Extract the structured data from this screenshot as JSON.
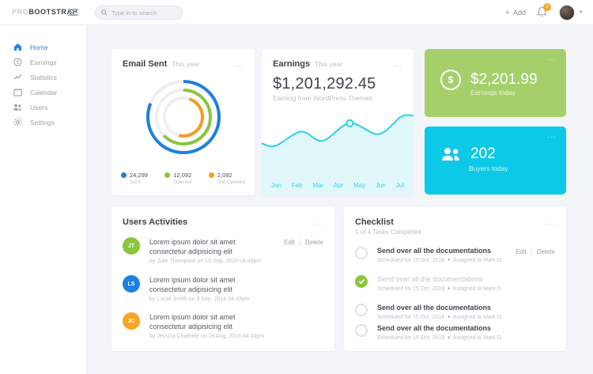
{
  "topbar": {
    "logo": {
      "pre": "PRO",
      "main": "BOOTSTRAP"
    },
    "search": {
      "placeholder": "Type in to search"
    },
    "add_label": "Add",
    "plus": "+",
    "notification_badge": "3",
    "caret": "▼"
  },
  "sidebar": {
    "items": [
      {
        "label": "Home",
        "active": true
      },
      {
        "label": "Earnings",
        "active": false
      },
      {
        "label": "Statistics",
        "active": false
      },
      {
        "label": "Calendar",
        "active": false
      },
      {
        "label": "Users",
        "active": false
      },
      {
        "label": "Settings",
        "active": false
      }
    ]
  },
  "email_sent": {
    "title": "Email Sent",
    "period": "This year",
    "menu": "...",
    "legend": [
      {
        "value": "24,299",
        "label": "Sent",
        "color": "#1d7fe0"
      },
      {
        "value": "12,092",
        "label": "Opened",
        "color": "#8bc53f"
      },
      {
        "value": "2,092",
        "label": "Not Opened",
        "color": "#f59d20"
      }
    ]
  },
  "earnings": {
    "title": "Earnings",
    "period": "This year",
    "menu": "...",
    "amount": "$1,201,292.45",
    "subtitle": "Earning from WordPress Themes",
    "months": [
      "Jan",
      "Feb",
      "Mar",
      "Apr",
      "May",
      "Jun",
      "Jul"
    ]
  },
  "earnings_today": {
    "menu": "...",
    "icon_symbol": "$",
    "amount": "$2,201.99",
    "label": "Earnings today",
    "color": "#a5cf6b"
  },
  "buyers_today": {
    "menu": "...",
    "count": "202",
    "label": "Buyers today",
    "color": "#0cc9e8"
  },
  "activities": {
    "title": "Users Activities",
    "menu": "...",
    "edit": "Edit",
    "delete": "Delete",
    "items": [
      {
        "initials": "JT",
        "color": "#8bc53f",
        "text": "Lorem ipsum dolor sit amet consectetur adipisicing elit",
        "meta": "by Julie Thompson on 10 Sep, 2016 04:43pm"
      },
      {
        "initials": "LS",
        "color": "#1d7fe0",
        "text": "Lorem ipsum dolor sit amet consectetur adipisicing elit",
        "meta": "by Lucas Smith on 8 Sep, 2016 04:43pm"
      },
      {
        "initials": "JC",
        "color": "#f5a623",
        "text": "Lorem ipsum dolor sit amet consectetur adipisicing elit",
        "meta": "by Jessica Charlotte on 29 Aug, 2016 04:43pm"
      }
    ]
  },
  "checklist": {
    "title": "Checklist",
    "subtitle": "1 of 4 Tasks Completed",
    "menu": "...",
    "edit": "Edit",
    "delete": "Delete",
    "bullet": "•",
    "items": [
      {
        "title": "Send over all the documentations",
        "scheduled": "Scheduled for 15 Oct, 2016",
        "assigned": "Assigned to Mark D.",
        "done": false
      },
      {
        "title": "Send over all the documentations",
        "scheduled": "Scheduled for 15 Oct, 2016",
        "assigned": "Assigned to Mark D.",
        "done": true
      },
      {
        "title": "Send over all the documentations",
        "scheduled": "Scheduled for 15 Oct, 2016",
        "assigned": "Assigned to Mark D.",
        "done": false
      },
      {
        "title": "Send over all the documentations",
        "scheduled": "Scheduled for 15 Oct, 2016",
        "assigned": "Assigned to Mark D.",
        "done": false
      }
    ]
  },
  "chart_data": [
    {
      "type": "donut",
      "title": "Email Sent This year",
      "series": [
        {
          "name": "Sent",
          "value": 24299,
          "color": "#1d7fe0",
          "start_deg": 0,
          "sweep_deg": 292
        },
        {
          "name": "Opened",
          "value": 12092,
          "color": "#8bc53f",
          "start_deg": 0,
          "sweep_deg": 226
        },
        {
          "name": "Not Opened",
          "value": 2092,
          "color": "#f59d20",
          "start_deg": 18,
          "sweep_deg": 175
        }
      ],
      "track_color": "#edeff2",
      "radii": [
        45,
        34,
        24
      ],
      "stroke_width": 4
    },
    {
      "type": "area",
      "title": "Earnings This year",
      "x": [
        "Jan",
        "Feb",
        "Mar",
        "Apr",
        "May",
        "Jun",
        "Jul"
      ],
      "points": [
        [
          0,
          0.38
        ],
        [
          0.09,
          0.41
        ],
        [
          0.26,
          0.24
        ],
        [
          0.4,
          0.35
        ],
        [
          0.58,
          0.14
        ],
        [
          0.77,
          0.27
        ],
        [
          0.92,
          0.06
        ],
        [
          1,
          0.05
        ]
      ],
      "marker_index": 4,
      "line_color": "#29d2e4",
      "fill_color": "#e1f8fb",
      "width": 192,
      "height": 106
    }
  ]
}
